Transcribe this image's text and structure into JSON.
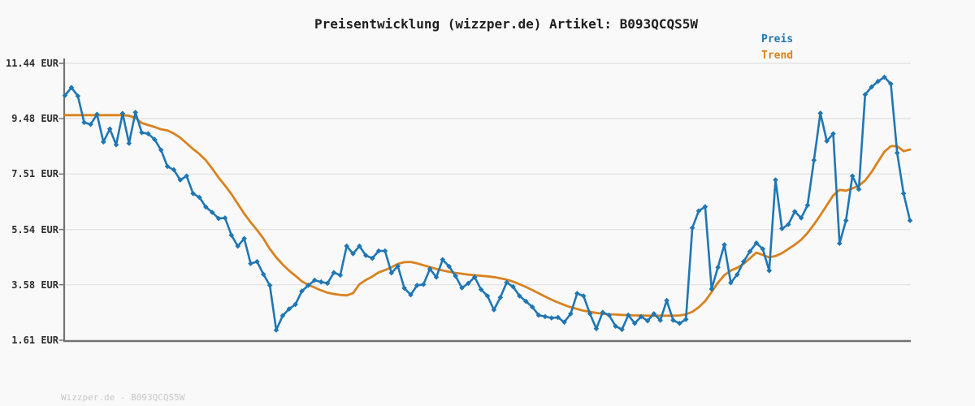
{
  "title": "Preisentwicklung (wizzper.de) Artikel: B093QCQS5W",
  "footer": "Wizzper.de - B093QCQS5W",
  "legend": {
    "items": [
      {
        "label": "Preis",
        "color": "#1f77b4"
      },
      {
        "label": "Trend",
        "color": "#d9821e"
      }
    ]
  },
  "colors": {
    "background": "#f9f9f9",
    "gridline": "#e4e4e4",
    "axis": "#737373",
    "tick_label": "#2e2e2e",
    "title_text": "#1f1f1f",
    "footer_text": "#c8c8c8",
    "preis_line": "#1f77b4",
    "trend_line": "#d9821e"
  },
  "chart_data": {
    "type": "line",
    "title": "Preisentwicklung (wizzper.de) Artikel: B093QCQS5W",
    "xlabel": "",
    "ylabel": "",
    "x_ticks": [],
    "ytick_labels": [
      "11.44 EUR",
      "9.48 EUR",
      "7.51 EUR",
      "5.54 EUR",
      "3.58 EUR",
      "1.61 EUR"
    ],
    "ytick_values": [
      11.44,
      9.48,
      7.51,
      5.54,
      3.58,
      1.61
    ],
    "ylim": [
      1.61,
      11.44
    ],
    "grid": "horizontal",
    "legend_position": "top-right",
    "unit": "EUR",
    "n_points": 133,
    "series": [
      {
        "name": "Preis",
        "color": "#1f77b4",
        "marker": "diamond",
        "line_width": 2.6,
        "values": [
          10.3,
          10.58,
          10.28,
          9.34,
          9.27,
          9.63,
          8.65,
          9.11,
          8.55,
          9.66,
          8.6,
          9.7,
          8.98,
          8.94,
          8.74,
          8.36,
          7.78,
          7.66,
          7.3,
          7.44,
          6.82,
          6.68,
          6.34,
          6.15,
          5.93,
          5.95,
          5.34,
          4.95,
          5.22,
          4.33,
          4.4,
          3.95,
          3.56,
          1.97,
          2.48,
          2.72,
          2.88,
          3.35,
          3.56,
          3.74,
          3.68,
          3.63,
          4.01,
          3.92,
          4.95,
          4.68,
          4.95,
          4.62,
          4.52,
          4.78,
          4.78,
          4.0,
          4.24,
          3.46,
          3.22,
          3.56,
          3.59,
          4.14,
          3.85,
          4.47,
          4.23,
          3.89,
          3.47,
          3.63,
          3.85,
          3.41,
          3.18,
          2.69,
          3.13,
          3.66,
          3.51,
          3.18,
          2.99,
          2.79,
          2.5,
          2.45,
          2.4,
          2.42,
          2.25,
          2.55,
          3.27,
          3.18,
          2.55,
          2.02,
          2.6,
          2.5,
          2.11,
          1.99,
          2.5,
          2.21,
          2.45,
          2.3,
          2.55,
          2.32,
          3.02,
          2.32,
          2.21,
          2.35,
          5.6,
          6.2,
          6.35,
          3.43,
          4.2,
          5.0,
          3.65,
          3.94,
          4.4,
          4.76,
          5.06,
          4.85,
          4.08,
          7.3,
          5.57,
          5.72,
          6.18,
          5.95,
          6.4,
          8.0,
          9.67,
          8.68,
          8.94,
          5.05,
          5.86,
          7.44,
          6.97,
          10.33,
          10.6,
          10.8,
          10.95,
          10.71,
          8.26,
          6.82,
          5.86
        ]
      },
      {
        "name": "Trend",
        "color": "#d9821e",
        "marker": "none",
        "line_width": 2.8,
        "values": [
          9.6,
          9.6,
          9.6,
          9.6,
          9.6,
          9.6,
          9.6,
          9.6,
          9.6,
          9.6,
          9.58,
          9.5,
          9.32,
          9.25,
          9.18,
          9.1,
          9.06,
          8.95,
          8.8,
          8.6,
          8.4,
          8.22,
          8.0,
          7.7,
          7.38,
          7.1,
          6.8,
          6.45,
          6.1,
          5.8,
          5.52,
          5.22,
          4.85,
          4.55,
          4.3,
          4.08,
          3.9,
          3.7,
          3.58,
          3.48,
          3.38,
          3.3,
          3.25,
          3.22,
          3.2,
          3.28,
          3.6,
          3.75,
          3.87,
          4.02,
          4.1,
          4.2,
          4.32,
          4.38,
          4.39,
          4.34,
          4.27,
          4.21,
          4.14,
          4.09,
          4.04,
          4.0,
          3.97,
          3.94,
          3.92,
          3.9,
          3.88,
          3.85,
          3.81,
          3.76,
          3.69,
          3.6,
          3.5,
          3.39,
          3.28,
          3.16,
          3.05,
          2.95,
          2.86,
          2.78,
          2.72,
          2.66,
          2.62,
          2.58,
          2.55,
          2.53,
          2.52,
          2.51,
          2.5,
          2.49,
          2.49,
          2.48,
          2.48,
          2.48,
          2.48,
          2.48,
          2.49,
          2.53,
          2.62,
          2.78,
          3.0,
          3.32,
          3.65,
          3.92,
          4.08,
          4.18,
          4.32,
          4.52,
          4.72,
          4.64,
          4.55,
          4.6,
          4.7,
          4.85,
          5.0,
          5.18,
          5.42,
          5.72,
          6.05,
          6.4,
          6.75,
          6.95,
          6.92,
          7.0,
          7.1,
          7.28,
          7.58,
          7.95,
          8.3,
          8.5,
          8.5,
          8.32,
          8.38
        ]
      }
    ]
  }
}
